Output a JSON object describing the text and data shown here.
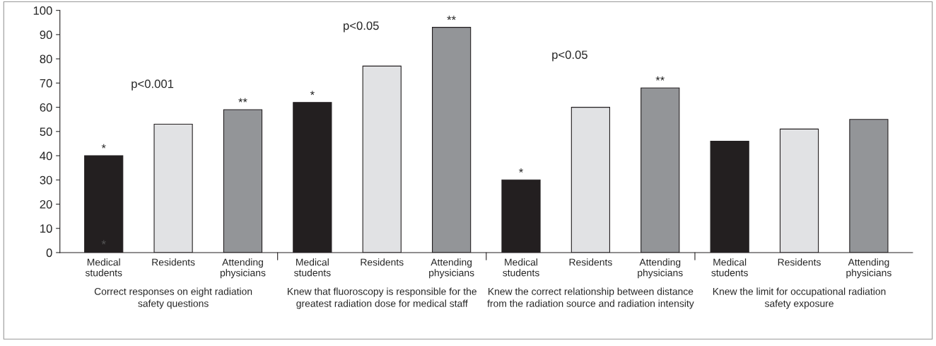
{
  "chart_data": {
    "type": "bar",
    "categories": [
      "Medical\nstudents",
      "Residents",
      "Attending\nphysicians",
      "Medical\nstudents",
      "Residents",
      "Attending\nphysicians",
      "Medical\nstudents",
      "Residents",
      "Attending\nphysicians",
      "Medical\nstudents",
      "Residents",
      "Attending\nphysicians"
    ],
    "values": [
      40,
      53,
      59,
      62,
      77,
      93,
      30,
      60,
      68,
      46,
      51,
      55
    ],
    "colors": [
      "#231f20",
      "#e1e2e4",
      "#939598",
      "#231f20",
      "#e1e2e4",
      "#939598",
      "#231f20",
      "#e1e2e4",
      "#939598",
      "#231f20",
      "#e1e2e4",
      "#939598"
    ],
    "value_labels": [
      "*",
      null,
      "**",
      "*",
      null,
      "**",
      "*",
      null,
      "**",
      null,
      null,
      null
    ],
    "annotations": [
      "Correct responses on eight radiation\nsafety questions",
      "Knew that fluoroscopy is responsible for the\ngreatest radiation dose for medical staff",
      "Knew the correct relationship between distance\nfrom the radiation source and radiation intensity",
      "Knew the limit for occupational radiation\nsafety exposure",
      "p<0.001",
      "p<0.05",
      "p<0.05",
      "*"
    ],
    "ylim": [
      0,
      100
    ],
    "yticks": [
      0,
      10,
      20,
      30,
      40,
      50,
      60,
      70,
      80,
      90,
      100
    ],
    "grid": false,
    "legend": false
  }
}
